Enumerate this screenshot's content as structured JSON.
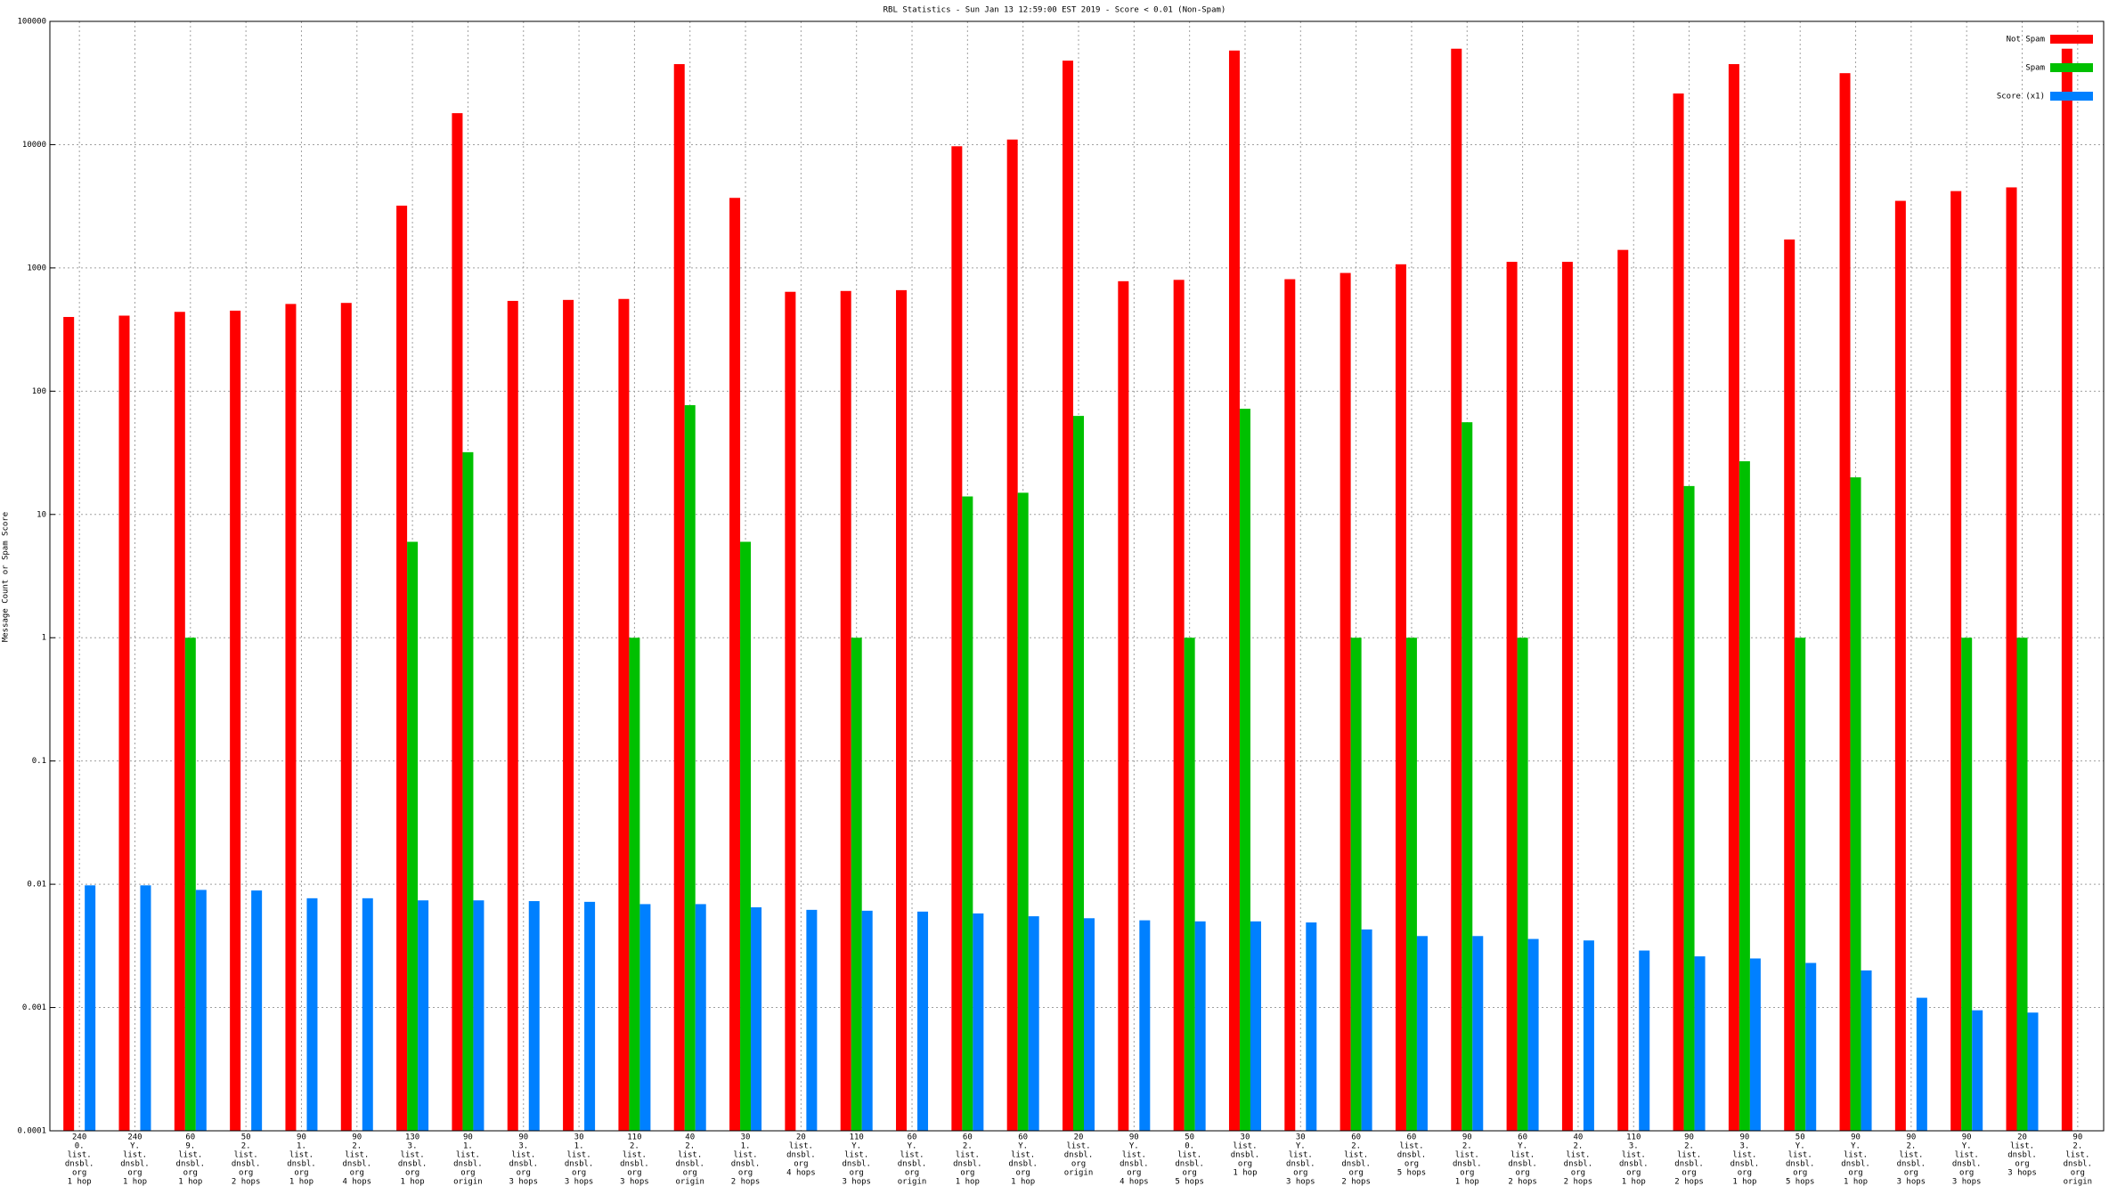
{
  "chart_data": {
    "type": "bar",
    "title": "RBL Statistics - Sun Jan 13 12:59:00 EST 2019 - Score < 0.01 (Non-Spam)",
    "y_label": "Message Count or Spam Score",
    "log_scale": true,
    "grid": true,
    "legend": "top-right",
    "categories": [
      [
        "240",
        "0.",
        "list.",
        "dnsbl.",
        "org",
        "1 hop"
      ],
      [
        "240",
        "Y.",
        "list.",
        "dnsbl.",
        "org",
        "1 hop"
      ],
      [
        "60",
        "9.",
        "list.",
        "dnsbl.",
        "org",
        "1 hop"
      ],
      [
        "50",
        "2.",
        "list.",
        "dnsbl.",
        "org",
        "2 hops"
      ],
      [
        "90",
        "1.",
        "list.",
        "dnsbl.",
        "org",
        "1 hop"
      ],
      [
        "90",
        "2.",
        "list.",
        "dnsbl.",
        "org",
        "4 hops"
      ],
      [
        "130",
        "3.",
        "list.",
        "dnsbl.",
        "org",
        "1 hop"
      ],
      [
        "90",
        "1.",
        "list.",
        "dnsbl.",
        "org",
        "origin"
      ],
      [
        "90",
        "3.",
        "list.",
        "dnsbl.",
        "org",
        "3 hops"
      ],
      [
        "30",
        "1.",
        "list.",
        "dnsbl.",
        "org",
        "3 hops"
      ],
      [
        "110",
        "2.",
        "list.",
        "dnsbl.",
        "org",
        "3 hops"
      ],
      [
        "40",
        "2.",
        "list.",
        "dnsbl.",
        "org",
        "origin"
      ],
      [
        "30",
        "1.",
        "list.",
        "dnsbl.",
        "org",
        "2 hops"
      ],
      [
        "20",
        "list.",
        "dnsbl.",
        "org",
        "4 hops"
      ],
      [
        "110",
        "Y.",
        "list.",
        "dnsbl.",
        "org",
        "3 hops"
      ],
      [
        "60",
        "Y.",
        "list.",
        "dnsbl.",
        "org",
        "origin"
      ],
      [
        "60",
        "2.",
        "list.",
        "dnsbl.",
        "org",
        "1 hop"
      ],
      [
        "60",
        "Y.",
        "list.",
        "dnsbl.",
        "org",
        "1 hop"
      ],
      [
        "20",
        "list.",
        "dnsbl.",
        "org",
        "origin"
      ],
      [
        "90",
        "Y.",
        "list.",
        "dnsbl.",
        "org",
        "4 hops"
      ],
      [
        "50",
        "0.",
        "list.",
        "dnsbl.",
        "org",
        "5 hops"
      ],
      [
        "30",
        "list.",
        "dnsbl.",
        "org",
        "1 hop"
      ],
      [
        "30",
        "Y.",
        "list.",
        "dnsbl.",
        "org",
        "3 hops"
      ],
      [
        "60",
        "2.",
        "list.",
        "dnsbl.",
        "org",
        "2 hops"
      ],
      [
        "60",
        "list.",
        "dnsbl.",
        "org",
        "5 hops"
      ],
      [
        "90",
        "2.",
        "list.",
        "dnsbl.",
        "org",
        "1 hop"
      ],
      [
        "60",
        "Y.",
        "list.",
        "dnsbl.",
        "org",
        "2 hops"
      ],
      [
        "40",
        "2.",
        "list.",
        "dnsbl.",
        "org",
        "2 hops"
      ],
      [
        "110",
        "3.",
        "list.",
        "dnsbl.",
        "org",
        "1 hop"
      ],
      [
        "90",
        "2.",
        "list.",
        "dnsbl.",
        "org",
        "2 hops"
      ],
      [
        "90",
        "3.",
        "list.",
        "dnsbl.",
        "org",
        "1 hop"
      ],
      [
        "50",
        "Y.",
        "list.",
        "dnsbl.",
        "org",
        "5 hops"
      ],
      [
        "90",
        "Y.",
        "list.",
        "dnsbl.",
        "org",
        "1 hop"
      ],
      [
        "90",
        "2.",
        "list.",
        "dnsbl.",
        "org",
        "3 hops"
      ],
      [
        "90",
        "Y.",
        "list.",
        "dnsbl.",
        "org",
        "3 hops"
      ],
      [
        "20",
        "list.",
        "dnsbl.",
        "org",
        "3 hops"
      ],
      [
        "90",
        "2.",
        "list.",
        "dnsbl.",
        "org",
        "origin"
      ]
    ],
    "series": [
      {
        "name": "Not Spam",
        "color": "#ff0000",
        "values": [
          400,
          410,
          440,
          450,
          510,
          520,
          3200,
          18000,
          540,
          550,
          560,
          45000,
          3700,
          640,
          650,
          660,
          9700,
          11000,
          48000,
          780,
          800,
          58000,
          810,
          910,
          1070,
          60000,
          1120,
          1120,
          1400,
          26000,
          45000,
          1700,
          38000,
          3500,
          4200,
          4500,
          60000
        ]
      },
      {
        "name": "Spam",
        "color": "#00c000",
        "values": [
          null,
          null,
          1,
          null,
          null,
          null,
          6,
          32,
          null,
          null,
          1,
          77,
          6,
          null,
          1,
          null,
          14,
          15,
          63,
          null,
          1,
          72,
          null,
          1,
          1,
          56,
          1,
          null,
          null,
          17,
          27,
          1,
          20,
          null,
          1,
          1,
          null
        ]
      },
      {
        "name": "Score (x1)",
        "color": "#0080ff",
        "values": [
          0.0098,
          0.0098,
          0.009,
          0.0089,
          0.0077,
          0.0077,
          0.0074,
          0.0074,
          0.0073,
          0.0072,
          0.0069,
          0.0069,
          0.0065,
          0.0062,
          0.0061,
          0.006,
          0.0058,
          0.0055,
          0.0053,
          0.0051,
          0.005,
          0.005,
          0.0049,
          0.0043,
          0.0038,
          0.0038,
          0.0036,
          0.0035,
          0.0029,
          0.0026,
          0.0025,
          0.0023,
          0.002,
          0.0012,
          0.00095,
          0.00091,
          null
        ]
      }
    ],
    "ylim": [
      0.0001,
      100000
    ],
    "yticks": [
      0.0001,
      0.001,
      0.01,
      0.1,
      1,
      10,
      100,
      1000,
      10000,
      100000
    ]
  }
}
